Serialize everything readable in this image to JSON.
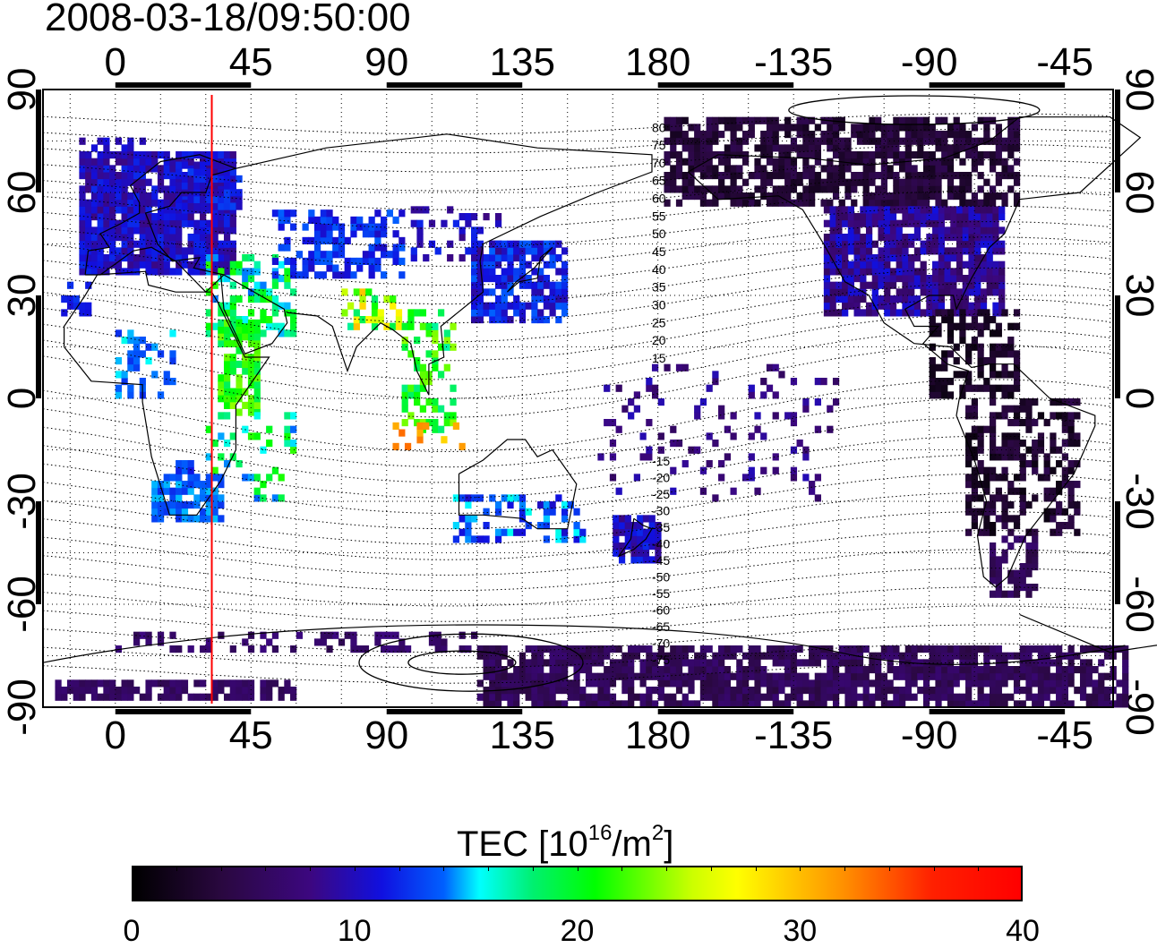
{
  "timestamp": "2008-03-18/09:50:00",
  "map": {
    "lon_ticks_top": [
      "0",
      "45",
      "90",
      "135",
      "180",
      "-135",
      "-90",
      "-45"
    ],
    "lon_ticks_bottom": [
      "0",
      "45",
      "90",
      "135",
      "180",
      "-135",
      "-90",
      "-45"
    ],
    "lat_ticks": [
      "90",
      "60",
      "30",
      "0",
      "-30",
      "-60",
      "-90"
    ],
    "contour_labels": [
      "80",
      "75",
      "70",
      "65",
      "60",
      "55",
      "50",
      "45",
      "40",
      "35",
      "30",
      "25",
      "20",
      "15",
      "-15",
      "-20",
      "-25",
      "-30",
      "-35",
      "-40",
      "-45",
      "-50",
      "-55",
      "-60",
      "-65",
      "-70",
      "-75"
    ],
    "marker_longitude": 32,
    "marker_color": "#ff0000"
  },
  "colorbar": {
    "title_main": "TEC  [10",
    "title_exp1": "16",
    "title_mid": "/m",
    "title_exp2": "2",
    "title_end": "]",
    "tick_labels": [
      "0",
      "10",
      "20",
      "30",
      "40"
    ],
    "min": 0,
    "max": 40
  }
}
